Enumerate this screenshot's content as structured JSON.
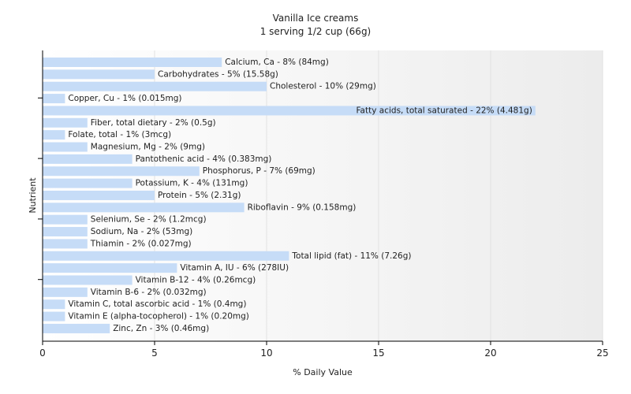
{
  "chart_data": {
    "type": "bar",
    "orientation": "horizontal",
    "title": "Vanilla Ice creams",
    "subtitle": "1 serving 1/2 cup (66g)",
    "xlabel": "% Daily Value",
    "ylabel": "Nutrient",
    "xlim": [
      0,
      25
    ],
    "xticks": [
      0,
      5,
      10,
      15,
      20,
      25
    ],
    "grid": true,
    "bar_color": "#c6dcf7",
    "categories": [
      "Calcium, Ca - 8% (84mg)",
      "Carbohydrates - 5% (15.58g)",
      "Cholesterol - 10% (29mg)",
      "Copper, Cu - 1% (0.015mg)",
      "Fatty acids, total saturated - 22% (4.481g)",
      "Fiber, total dietary - 2% (0.5g)",
      "Folate, total - 1% (3mcg)",
      "Magnesium, Mg - 2% (9mg)",
      "Pantothenic acid - 4% (0.383mg)",
      "Phosphorus, P - 7% (69mg)",
      "Potassium, K - 4% (131mg)",
      "Protein - 5% (2.31g)",
      "Riboflavin - 9% (0.158mg)",
      "Selenium, Se - 2% (1.2mcg)",
      "Sodium, Na - 2% (53mg)",
      "Thiamin - 2% (0.027mg)",
      "Total lipid (fat) - 11% (7.26g)",
      "Vitamin A, IU - 6% (278IU)",
      "Vitamin B-12 - 4% (0.26mcg)",
      "Vitamin B-6 - 2% (0.032mg)",
      "Vitamin C, total ascorbic acid - 1% (0.4mg)",
      "Vitamin E (alpha-tocopherol) - 1% (0.20mg)",
      "Zinc, Zn - 3% (0.46mg)"
    ],
    "values": [
      8,
      5,
      10,
      1,
      22,
      2,
      1,
      2,
      4,
      7,
      4,
      5,
      9,
      2,
      2,
      2,
      11,
      6,
      4,
      2,
      1,
      1,
      3
    ]
  }
}
